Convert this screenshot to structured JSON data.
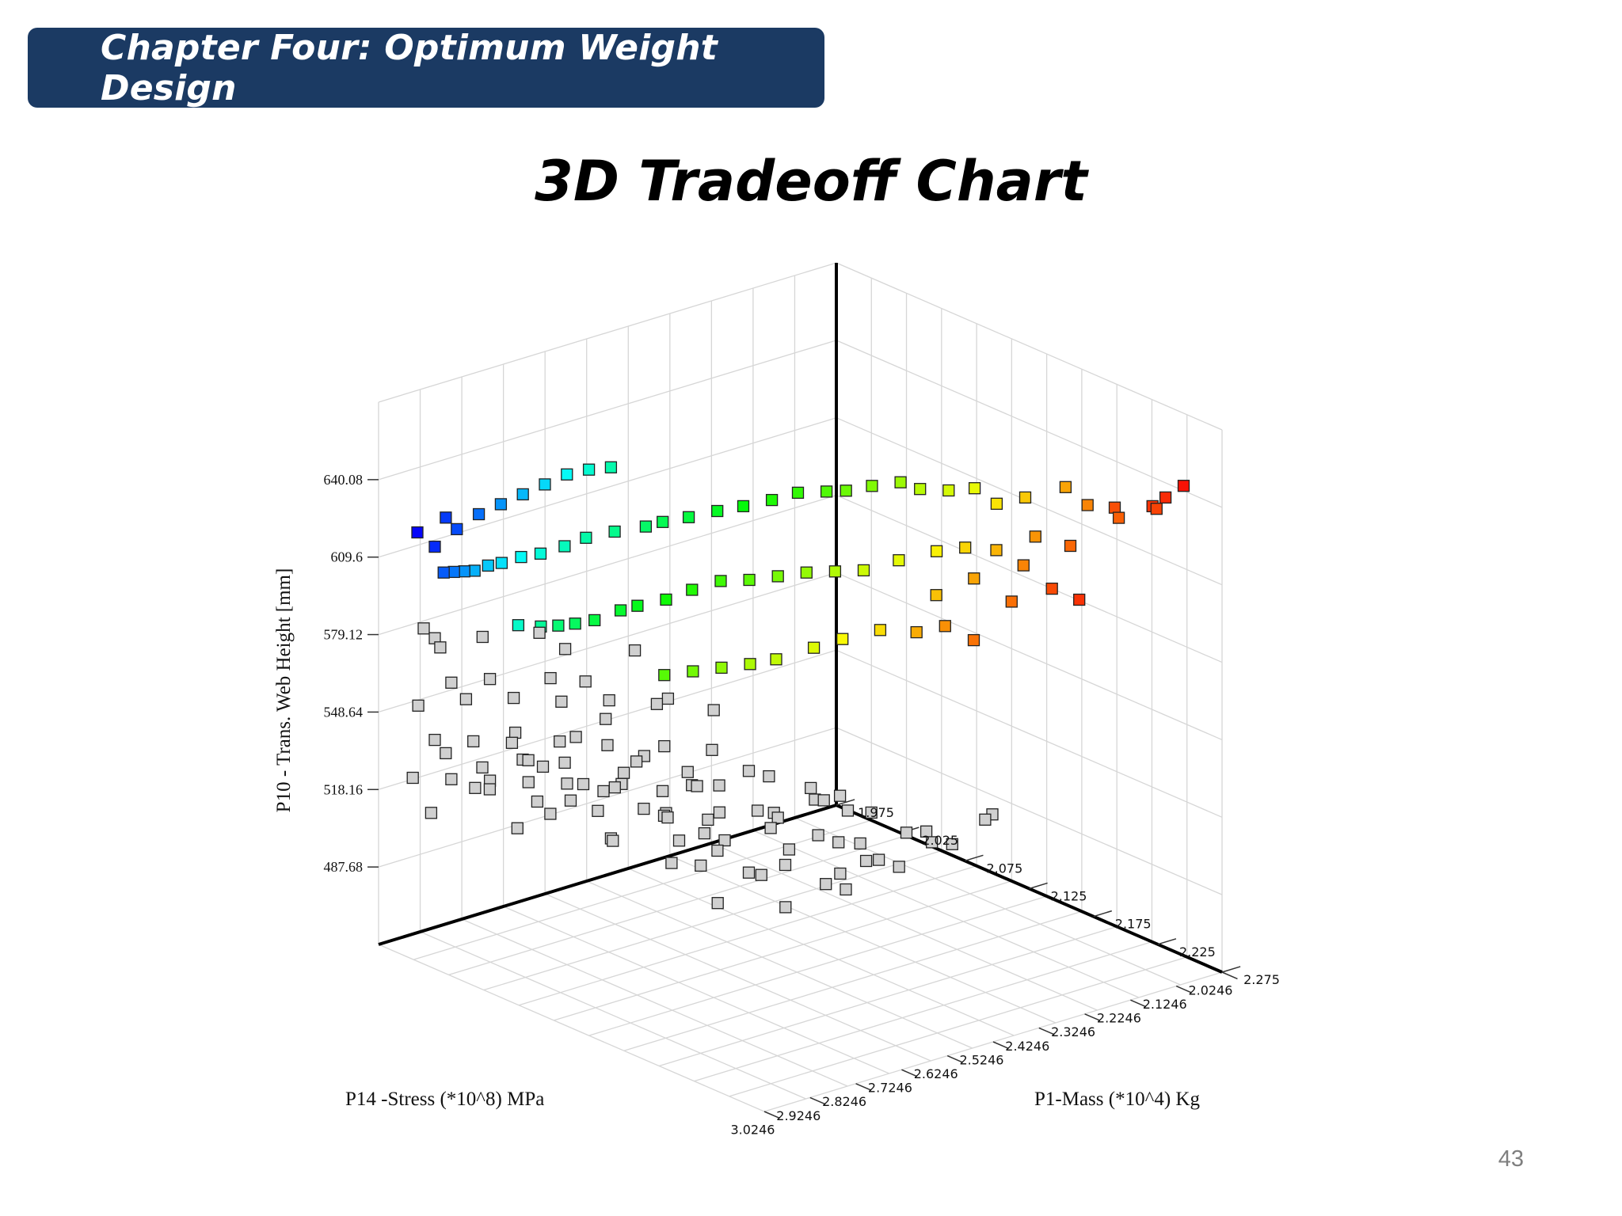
{
  "header": {
    "chapter_title": "Chapter Four: Optimum Weight Design"
  },
  "slide": {
    "title": "3D Tradeoff Chart",
    "page_number": "43"
  },
  "chart_data": {
    "type": "scatter",
    "projection": "3d",
    "title": "3D Tradeoff Chart",
    "xlabel": "P1-Mass (*10^4) Kg",
    "ylabel": "P14 -Stress (*10^8) MPa",
    "zlabel": "P10 - Trans. Web Height [mm]",
    "x_ticks": [
      "1.975",
      "2.025",
      "2.075",
      "2.125",
      "2.175",
      "2.225",
      "2.275"
    ],
    "y_ticks": [
      "2.0246",
      "2.1246",
      "2.2246",
      "2.3246",
      "2.4246",
      "2.5246",
      "2.6246",
      "2.7246",
      "2.8246",
      "2.9246",
      "3.0246"
    ],
    "z_ticks": [
      "487.68",
      "518.16",
      "548.64",
      "579.12",
      "609.6",
      "640.08"
    ],
    "xlim": [
      1.975,
      2.275
    ],
    "ylim": [
      2.0246,
      3.0246
    ],
    "zlim": [
      457.2,
      670.56
    ],
    "grid": true,
    "point_marker": "square",
    "feasible_colormap": "red → orange → yellow → green → cyan → blue by increasing mass",
    "infeasible_color": "#d0d0d0",
    "series": [
      {
        "name": "",
        "color_mode": "colormap",
        "points": [
          {
            "x": 2.272,
            "y": 2.1,
            "z": 652
          },
          {
            "x": 2.262,
            "y": 2.14,
            "z": 644
          },
          {
            "x": 2.265,
            "y": 2.12,
            "z": 647
          },
          {
            "x": 2.258,
            "y": 2.12,
            "z": 641
          },
          {
            "x": 2.254,
            "y": 2.2,
            "z": 645
          },
          {
            "x": 2.25,
            "y": 2.18,
            "z": 639
          },
          {
            "x": 2.262,
            "y": 2.3,
            "z": 616
          },
          {
            "x": 2.255,
            "y": 2.34,
            "z": 621
          },
          {
            "x": 2.248,
            "y": 2.28,
            "z": 633
          },
          {
            "x": 2.245,
            "y": 2.4,
            "z": 617
          },
          {
            "x": 2.24,
            "y": 2.36,
            "z": 628
          },
          {
            "x": 2.244,
            "y": 2.48,
            "z": 606
          },
          {
            "x": 2.236,
            "y": 2.52,
            "z": 612
          },
          {
            "x": 2.24,
            "y": 2.22,
            "z": 644
          },
          {
            "x": 2.235,
            "y": 2.32,
            "z": 636
          },
          {
            "x": 2.23,
            "y": 2.44,
            "z": 625
          },
          {
            "x": 2.228,
            "y": 2.56,
            "z": 610
          },
          {
            "x": 2.23,
            "y": 2.24,
            "z": 650
          },
          {
            "x": 2.226,
            "y": 2.38,
            "z": 632
          },
          {
            "x": 2.222,
            "y": 2.5,
            "z": 620
          },
          {
            "x": 2.22,
            "y": 2.3,
            "z": 647
          },
          {
            "x": 2.216,
            "y": 2.42,
            "z": 633
          },
          {
            "x": 2.214,
            "y": 2.6,
            "z": 610
          },
          {
            "x": 2.212,
            "y": 2.34,
            "z": 645
          },
          {
            "x": 2.208,
            "y": 2.46,
            "z": 632
          },
          {
            "x": 2.206,
            "y": 2.66,
            "z": 608
          },
          {
            "x": 2.202,
            "y": 2.36,
            "z": 650
          },
          {
            "x": 2.2,
            "y": 2.52,
            "z": 630
          },
          {
            "x": 2.198,
            "y": 2.7,
            "z": 605
          },
          {
            "x": 2.196,
            "y": 2.4,
            "z": 650
          },
          {
            "x": 2.194,
            "y": 2.58,
            "z": 628
          },
          {
            "x": 2.19,
            "y": 2.76,
            "z": 602
          },
          {
            "x": 2.188,
            "y": 2.44,
            "z": 651
          },
          {
            "x": 2.186,
            "y": 2.62,
            "z": 628
          },
          {
            "x": 2.184,
            "y": 2.8,
            "z": 601
          },
          {
            "x": 2.18,
            "y": 2.46,
            "z": 653
          },
          {
            "x": 2.178,
            "y": 2.66,
            "z": 628
          },
          {
            "x": 2.176,
            "y": 2.84,
            "z": 600
          },
          {
            "x": 2.172,
            "y": 2.5,
            "z": 652
          },
          {
            "x": 2.17,
            "y": 2.7,
            "z": 627
          },
          {
            "x": 2.168,
            "y": 2.88,
            "z": 599
          },
          {
            "x": 2.166,
            "y": 2.54,
            "z": 651
          },
          {
            "x": 2.162,
            "y": 2.74,
            "z": 626
          },
          {
            "x": 2.16,
            "y": 2.92,
            "z": 598
          },
          {
            "x": 2.158,
            "y": 2.56,
            "z": 650
          },
          {
            "x": 2.154,
            "y": 2.78,
            "z": 626
          },
          {
            "x": 2.15,
            "y": 2.6,
            "z": 650
          },
          {
            "x": 2.146,
            "y": 2.82,
            "z": 623
          },
          {
            "x": 2.144,
            "y": 2.64,
            "z": 648
          },
          {
            "x": 2.14,
            "y": 2.86,
            "z": 620
          },
          {
            "x": 2.136,
            "y": 2.68,
            "z": 646
          },
          {
            "x": 2.132,
            "y": 2.9,
            "z": 618
          },
          {
            "x": 2.13,
            "y": 2.72,
            "z": 645
          },
          {
            "x": 2.126,
            "y": 2.92,
            "z": 616
          },
          {
            "x": 2.122,
            "y": 2.76,
            "z": 643
          },
          {
            "x": 2.12,
            "y": 2.96,
            "z": 613
          },
          {
            "x": 2.116,
            "y": 2.8,
            "z": 642
          },
          {
            "x": 2.112,
            "y": 2.98,
            "z": 611
          },
          {
            "x": 2.11,
            "y": 2.82,
            "z": 640
          },
          {
            "x": 2.106,
            "y": 3.0,
            "z": 610
          },
          {
            "x": 2.1,
            "y": 2.86,
            "z": 638
          },
          {
            "x": 2.096,
            "y": 3.01,
            "z": 608
          },
          {
            "x": 2.092,
            "y": 2.9,
            "z": 636
          },
          {
            "x": 2.086,
            "y": 2.93,
            "z": 633
          },
          {
            "x": 2.082,
            "y": 3.02,
            "z": 606
          },
          {
            "x": 2.078,
            "y": 2.96,
            "z": 630
          },
          {
            "x": 2.07,
            "y": 2.98,
            "z": 628
          },
          {
            "x": 2.062,
            "y": 3.0,
            "z": 625
          },
          {
            "x": 2.055,
            "y": 3.01,
            "z": 623
          },
          {
            "x": 2.048,
            "y": 3.02,
            "z": 620
          },
          {
            "x": 2.04,
            "y": 3.02,
            "z": 618
          },
          {
            "x": 2.032,
            "y": 3.02,
            "z": 616
          },
          {
            "x": 2.024,
            "y": 3.02,
            "z": 614
          },
          {
            "x": 2.02,
            "y": 2.98,
            "z": 628
          },
          {
            "x": 2.03,
            "y": 2.96,
            "z": 635
          },
          {
            "x": 2.04,
            "y": 2.94,
            "z": 640
          },
          {
            "x": 2.05,
            "y": 2.92,
            "z": 645
          },
          {
            "x": 2.06,
            "y": 2.9,
            "z": 650
          },
          {
            "x": 2.07,
            "y": 2.88,
            "z": 655
          },
          {
            "x": 2.08,
            "y": 2.86,
            "z": 658
          },
          {
            "x": 2.09,
            "y": 2.84,
            "z": 660
          },
          {
            "x": 2.01,
            "y": 3.0,
            "z": 620
          },
          {
            "x": 2.0,
            "y": 3.01,
            "z": 624
          },
          {
            "x": 2.015,
            "y": 2.99,
            "z": 632
          }
        ]
      },
      {
        "name": "",
        "color_mode": "infeasible",
        "points": [
          {
            "x": 2.26,
            "y": 2.8,
            "z": 560
          },
          {
            "x": 2.25,
            "y": 2.9,
            "z": 548
          },
          {
            "x": 2.24,
            "y": 2.96,
            "z": 540
          },
          {
            "x": 2.23,
            "y": 3.0,
            "z": 528
          },
          {
            "x": 2.22,
            "y": 2.86,
            "z": 568
          },
          {
            "x": 2.21,
            "y": 2.94,
            "z": 556
          },
          {
            "x": 2.2,
            "y": 3.0,
            "z": 546
          },
          {
            "x": 2.19,
            "y": 2.9,
            "z": 574
          },
          {
            "x": 2.18,
            "y": 2.98,
            "z": 560
          },
          {
            "x": 2.17,
            "y": 2.84,
            "z": 582
          },
          {
            "x": 2.16,
            "y": 2.92,
            "z": 570
          },
          {
            "x": 2.15,
            "y": 3.0,
            "z": 556
          },
          {
            "x": 2.14,
            "y": 2.88,
            "z": 580
          },
          {
            "x": 2.13,
            "y": 2.96,
            "z": 566
          },
          {
            "x": 2.12,
            "y": 3.02,
            "z": 552
          },
          {
            "x": 2.11,
            "y": 2.9,
            "z": 576
          },
          {
            "x": 2.1,
            "y": 2.98,
            "z": 562
          },
          {
            "x": 2.09,
            "y": 3.02,
            "z": 546
          },
          {
            "x": 2.08,
            "y": 2.92,
            "z": 570
          },
          {
            "x": 2.07,
            "y": 3.0,
            "z": 556
          },
          {
            "x": 2.06,
            "y": 3.02,
            "z": 540
          },
          {
            "x": 2.05,
            "y": 2.94,
            "z": 566
          },
          {
            "x": 2.04,
            "y": 3.0,
            "z": 550
          },
          {
            "x": 2.03,
            "y": 3.02,
            "z": 534
          },
          {
            "x": 2.02,
            "y": 2.96,
            "z": 560
          },
          {
            "x": 2.01,
            "y": 3.0,
            "z": 544
          },
          {
            "x": 2.0,
            "y": 3.02,
            "z": 528
          },
          {
            "x": 1.99,
            "y": 2.98,
            "z": 552
          },
          {
            "x": 2.27,
            "y": 2.7,
            "z": 548
          },
          {
            "x": 2.26,
            "y": 2.76,
            "z": 538
          },
          {
            "x": 2.25,
            "y": 2.82,
            "z": 530
          },
          {
            "x": 2.24,
            "y": 2.88,
            "z": 522
          },
          {
            "x": 2.22,
            "y": 2.74,
            "z": 552
          },
          {
            "x": 2.2,
            "y": 2.8,
            "z": 540
          },
          {
            "x": 2.18,
            "y": 2.86,
            "z": 530
          },
          {
            "x": 2.16,
            "y": 2.8,
            "z": 548
          },
          {
            "x": 2.14,
            "y": 2.86,
            "z": 536
          },
          {
            "x": 2.12,
            "y": 2.92,
            "z": 524
          },
          {
            "x": 2.1,
            "y": 2.84,
            "z": 542
          },
          {
            "x": 2.08,
            "y": 2.9,
            "z": 530
          },
          {
            "x": 2.06,
            "y": 2.96,
            "z": 518
          },
          {
            "x": 2.04,
            "y": 2.88,
            "z": 536
          },
          {
            "x": 2.02,
            "y": 2.94,
            "z": 524
          },
          {
            "x": 2.0,
            "y": 2.98,
            "z": 512
          },
          {
            "x": 1.99,
            "y": 2.92,
            "z": 530
          },
          {
            "x": 2.27,
            "y": 2.6,
            "z": 538
          },
          {
            "x": 2.25,
            "y": 2.66,
            "z": 528
          },
          {
            "x": 2.23,
            "y": 2.72,
            "z": 518
          },
          {
            "x": 2.21,
            "y": 2.68,
            "z": 530
          },
          {
            "x": 2.19,
            "y": 2.74,
            "z": 520
          },
          {
            "x": 2.17,
            "y": 2.7,
            "z": 532
          },
          {
            "x": 2.15,
            "y": 2.76,
            "z": 522
          },
          {
            "x": 2.13,
            "y": 2.82,
            "z": 512
          },
          {
            "x": 2.11,
            "y": 2.78,
            "z": 524
          },
          {
            "x": 2.09,
            "y": 2.84,
            "z": 514
          },
          {
            "x": 2.07,
            "y": 2.8,
            "z": 526
          },
          {
            "x": 2.05,
            "y": 2.86,
            "z": 516
          },
          {
            "x": 2.03,
            "y": 2.82,
            "z": 528
          },
          {
            "x": 2.01,
            "y": 2.88,
            "z": 518
          },
          {
            "x": 1.99,
            "y": 2.84,
            "z": 520
          },
          {
            "x": 2.26,
            "y": 2.5,
            "z": 540
          },
          {
            "x": 2.24,
            "y": 2.56,
            "z": 530
          },
          {
            "x": 2.22,
            "y": 2.62,
            "z": 522
          },
          {
            "x": 2.2,
            "y": 2.58,
            "z": 534
          },
          {
            "x": 2.18,
            "y": 2.64,
            "z": 524
          },
          {
            "x": 2.16,
            "y": 2.6,
            "z": 536
          },
          {
            "x": 2.14,
            "y": 2.66,
            "z": 526
          },
          {
            "x": 2.12,
            "y": 2.72,
            "z": 516
          },
          {
            "x": 2.1,
            "y": 2.68,
            "z": 528
          },
          {
            "x": 2.08,
            "y": 2.74,
            "z": 518
          },
          {
            "x": 2.06,
            "y": 2.7,
            "z": 530
          },
          {
            "x": 2.04,
            "y": 2.76,
            "z": 520
          },
          {
            "x": 2.02,
            "y": 2.72,
            "z": 532
          },
          {
            "x": 2.0,
            "y": 2.78,
            "z": 522
          },
          {
            "x": 1.98,
            "y": 2.74,
            "z": 526
          },
          {
            "x": 2.27,
            "y": 2.9,
            "z": 572
          },
          {
            "x": 2.24,
            "y": 2.96,
            "z": 580
          },
          {
            "x": 2.21,
            "y": 3.0,
            "z": 570
          },
          {
            "x": 2.18,
            "y": 3.02,
            "z": 576
          },
          {
            "x": 2.15,
            "y": 3.02,
            "z": 584
          },
          {
            "x": 2.12,
            "y": 2.98,
            "z": 590
          },
          {
            "x": 2.09,
            "y": 2.94,
            "z": 594
          },
          {
            "x": 2.06,
            "y": 3.02,
            "z": 580
          },
          {
            "x": 2.03,
            "y": 3.02,
            "z": 572
          },
          {
            "x": 2.0,
            "y": 2.96,
            "z": 576
          },
          {
            "x": 2.23,
            "y": 2.4,
            "z": 530
          },
          {
            "x": 2.2,
            "y": 2.46,
            "z": 520
          },
          {
            "x": 2.17,
            "y": 2.52,
            "z": 512
          },
          {
            "x": 2.14,
            "y": 2.48,
            "z": 522
          },
          {
            "x": 2.11,
            "y": 2.54,
            "z": 512
          },
          {
            "x": 2.08,
            "y": 2.6,
            "z": 506
          },
          {
            "x": 2.05,
            "y": 2.56,
            "z": 516
          },
          {
            "x": 2.02,
            "y": 2.62,
            "z": 508
          },
          {
            "x": 1.99,
            "y": 2.66,
            "z": 512
          },
          {
            "x": 2.17,
            "y": 2.94,
            "z": 592
          },
          {
            "x": 2.13,
            "y": 2.9,
            "z": 600
          },
          {
            "x": 2.1,
            "y": 3.0,
            "z": 588
          },
          {
            "x": 2.07,
            "y": 2.94,
            "z": 596
          },
          {
            "x": 2.04,
            "y": 2.98,
            "z": 590
          },
          {
            "x": 2.01,
            "y": 3.0,
            "z": 584
          },
          {
            "x": 1.98,
            "y": 2.94,
            "z": 578
          },
          {
            "x": 2.19,
            "y": 2.62,
            "z": 510
          },
          {
            "x": 2.15,
            "y": 2.68,
            "z": 504
          },
          {
            "x": 2.11,
            "y": 2.7,
            "z": 500
          },
          {
            "x": 2.07,
            "y": 2.66,
            "z": 508
          },
          {
            "x": 2.03,
            "y": 2.7,
            "z": 504
          },
          {
            "x": 1.99,
            "y": 2.72,
            "z": 500
          }
        ]
      }
    ]
  }
}
